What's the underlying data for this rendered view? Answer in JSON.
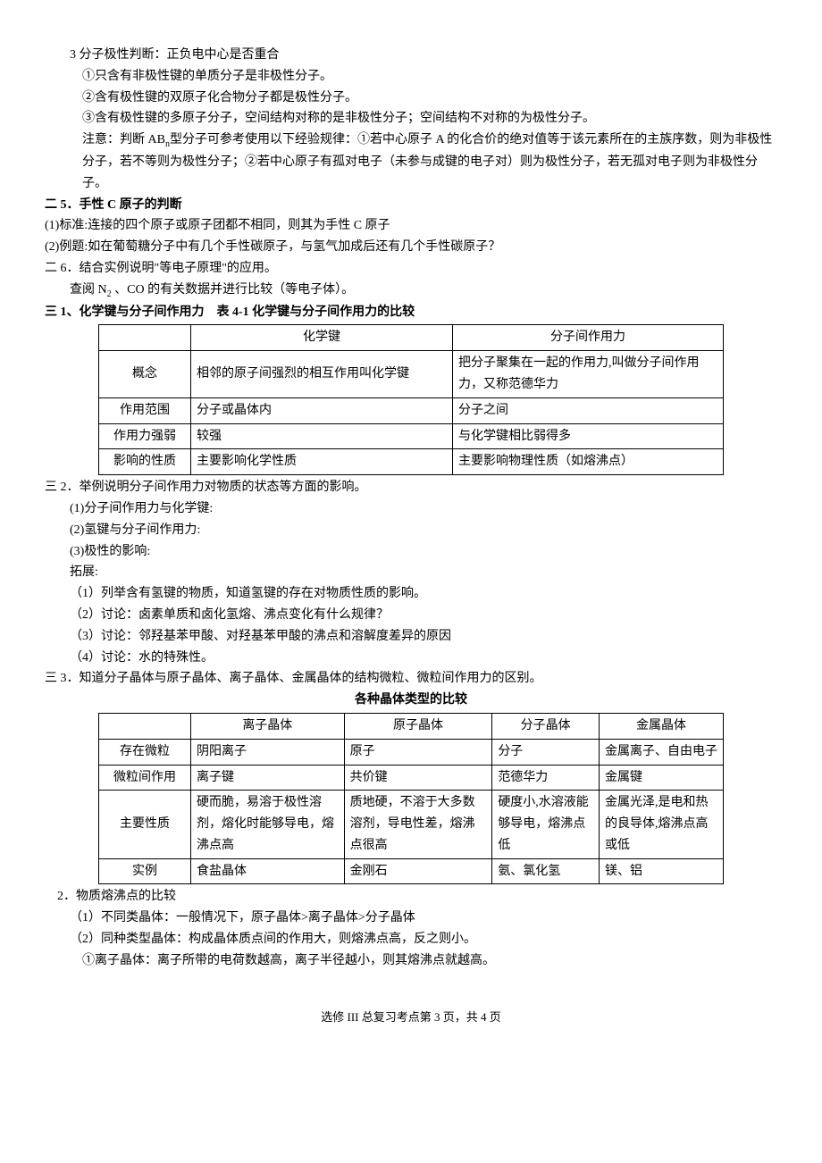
{
  "p": {
    "l1": "3 分子极性判断：正负电中心是否重合",
    "l2": "①只含有非极性键的单质分子是非极性分子。",
    "l3": "②含有极性键的双原子化合物分子都是极性分子。",
    "l4": "③含有极性键的多原子分子，空间结构对称的是非极性分子；空间结构不对称的为极性分子。",
    "l5a": "注意：判断 AB",
    "l5b": "n",
    "l5c": "型分子可参考使用以下经验规律：①若中心原子 A 的化合价的绝对值等于该元素所在的主族序数，则为非极性分子，若不等则为极性分子；②若中心原子有孤对电子（未参与成键的电子对）则为极性分子，若无孤对电子则为非极性分子。",
    "h1": "二 5．手性 C 原子的判断",
    "l6": "(1)标准:连接的四个原子或原子团都不相同，则其为手性 C 原子",
    "l7": "(2)例题:如在葡萄糖分子中有几个手性碳原子，与氢气加成后还有几个手性碳原子？",
    "l8": "二 6．结合实例说明\"等电子原理\"的应用。",
    "l9a": "查阅 N",
    "l9b": "2",
    "l9c": " 、CO 的有关数据并进行比较（等电子体）。",
    "h2": "三 1、化学键与分子间作用力　表 4-1 化学键与分子间作用力的比较",
    "l10": "三 2．举例说明分子间作用力对物质的状态等方面的影响。",
    "l11": "(1)分子间作用力与化学键:",
    "l12": "(2)氢键与分子间作用力:",
    "l13": "(3)极性的影响:",
    "l14": "拓展:",
    "l15": "（1）列举含有氢键的物质，知道氢键的存在对物质性质的影响。",
    "l16": "（2）讨论：卤素单质和卤化氢熔、沸点变化有什么规律？",
    "l17": "（3）讨论：邻羟基苯甲酸、对羟基苯甲酸的沸点和溶解度差异的原因",
    "l18": "（4）讨论：水的特殊性。",
    "l19": "三 3．知道分子晶体与原子晶体、离子晶体、金属晶体的结构微粒、微粒间作用力的区别。",
    "h3": "各种晶体类型的比较",
    "l20": "2．物质熔沸点的比较",
    "l21": "（1）不同类晶体：一般情况下，原子晶体>离子晶体>分子晶体",
    "l22": "（2）同种类型晶体：构成晶体质点间的作用大，则熔沸点高，反之则小。",
    "l23": "①离子晶体：离子所带的电荷数越高，离子半径越小，则其熔沸点就越高。",
    "footer": "选修 III 总复习考点第 3 页，共 4 页"
  },
  "t1": {
    "h1": "化学键",
    "h2": "分子间作用力",
    "r1c0": "概念",
    "r1c1": "相邻的原子间强烈的相互作用叫化学键",
    "r1c2": "把分子聚集在一起的作用力,叫做分子间作用力，又称范德华力",
    "r2c0": "作用范围",
    "r2c1": "分子或晶体内",
    "r2c2": "分子之间",
    "r3c0": "作用力强弱",
    "r3c1": "较强",
    "r3c2": "与化学键相比弱得多",
    "r4c0": "影响的性质",
    "r4c1": "主要影响化学性质",
    "r4c2": "主要影响物理性质（如熔沸点）"
  },
  "t2": {
    "h1": "离子晶体",
    "h2": "原子晶体",
    "h3": "分子晶体",
    "h4": "金属晶体",
    "r1c0": "存在微粒",
    "r1c1": "阴阳离子",
    "r1c2": "原子",
    "r1c3": "分子",
    "r1c4": "金属离子、自由电子",
    "r2c0": "微粒间作用",
    "r2c1": "离子键",
    "r2c2": "共价键",
    "r2c3": "范德华力",
    "r2c4": "金属键",
    "r3c0": "主要性质",
    "r3c1": "硬而脆，易溶于极性溶剂，熔化时能够导电，熔沸点高",
    "r3c2": "质地硬，不溶于大多数溶剂，导电性差，熔沸点很高",
    "r3c3": "硬度小,水溶液能够导电，熔沸点低",
    "r3c4": "金属光泽,是电和热的良导体,熔沸点高或低",
    "r4c0": "实例",
    "r4c1": "食盐晶体",
    "r4c2": "金刚石",
    "r4c3": "氨、氯化氢",
    "r4c4": "镁、铝"
  }
}
